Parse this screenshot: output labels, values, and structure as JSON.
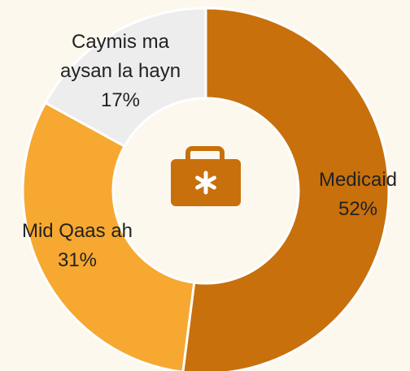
{
  "chart_data": {
    "type": "donut",
    "categories": [
      "Medicaid",
      "Mid Qaas ah",
      "Caymis ma aysan la hayn"
    ],
    "values": [
      52,
      31,
      17
    ],
    "value_labels": [
      "52%",
      "31%",
      "17%"
    ],
    "colors": [
      "#c8700c",
      "#f7a830",
      "#ededed"
    ]
  }
}
